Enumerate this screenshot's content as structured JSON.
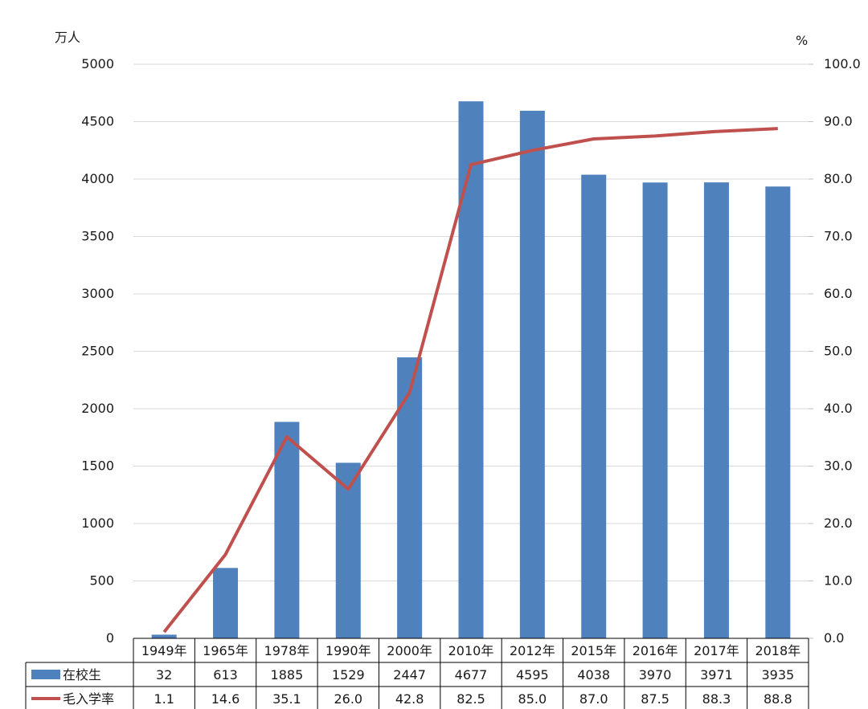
{
  "chart_data": {
    "type": "bar",
    "categories": [
      "1949年",
      "1965年",
      "1978年",
      "1990年",
      "2000年",
      "2010年",
      "2012年",
      "2015年",
      "2016年",
      "2017年",
      "2018年"
    ],
    "series": [
      {
        "name": "在校生",
        "type": "bar",
        "axis": "left",
        "values": [
          32,
          613,
          1885,
          1529,
          2447,
          4677,
          4595,
          4038,
          3970,
          3971,
          3935
        ],
        "value_labels": [
          "32",
          "613",
          "1885",
          "1529",
          "2447",
          "4677",
          "4595",
          "4038",
          "3970",
          "3971",
          "3935"
        ]
      },
      {
        "name": "毛入学率",
        "type": "line",
        "axis": "right",
        "values": [
          1.1,
          14.6,
          35.1,
          26.0,
          42.8,
          82.5,
          85.0,
          87.0,
          87.5,
          88.3,
          88.8
        ],
        "value_labels": [
          "1.1",
          "14.6",
          "35.1",
          "26.0",
          "42.8",
          "82.5",
          "85.0",
          "87.0",
          "87.5",
          "88.3",
          "88.8"
        ]
      }
    ],
    "y_left": {
      "unit_label": "万人",
      "ylim": [
        0,
        5000
      ],
      "ticks": [
        0,
        500,
        1000,
        1500,
        2000,
        2500,
        3000,
        3500,
        4000,
        4500,
        5000
      ],
      "tick_labels": [
        "0",
        "500",
        "1000",
        "1500",
        "2000",
        "2500",
        "3000",
        "3500",
        "4000",
        "4500",
        "5000"
      ]
    },
    "y_right": {
      "unit_label": "%",
      "ylim": [
        0,
        100
      ],
      "ticks": [
        0,
        10,
        20,
        30,
        40,
        50,
        60,
        70,
        80,
        90,
        100
      ],
      "tick_labels": [
        "0.0",
        "10.0",
        "20.0",
        "30.0",
        "40.0",
        "50.0",
        "60.0",
        "70.0",
        "80.0",
        "90.0",
        "100.0"
      ]
    },
    "grid": true,
    "legend": "data-table",
    "colors": {
      "bar": "#4f81bd",
      "line": "#c0504d",
      "grid": "#d9d9d9",
      "table": "#000000"
    }
  }
}
